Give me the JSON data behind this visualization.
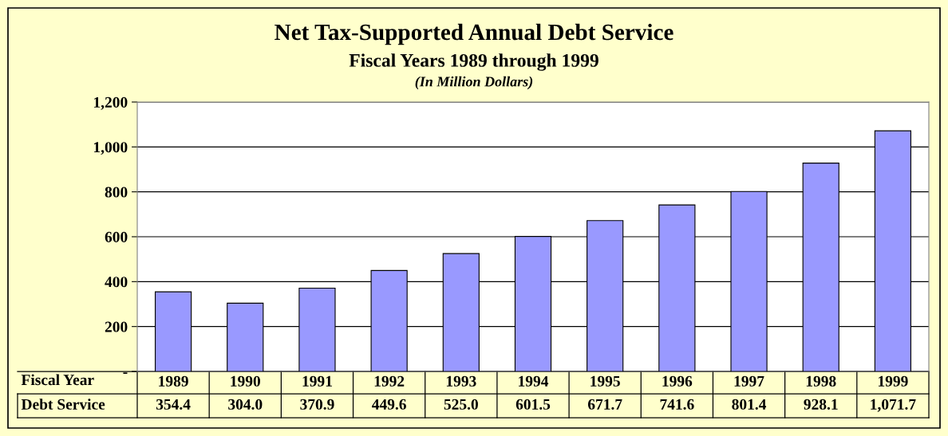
{
  "chart_data": {
    "type": "bar",
    "title": "Net Tax-Supported Annual Debt Service",
    "subtitle": "Fiscal Years 1989 through 1999",
    "xlabel": "Fiscal Year",
    "annotations": [
      "(In Million Dollars)",
      "Debt Service"
    ],
    "categories": [
      "1989",
      "1990",
      "1991",
      "1992",
      "1993",
      "1994",
      "1995",
      "1996",
      "1997",
      "1998",
      "1999"
    ],
    "values": [
      354.4,
      304.0,
      370.9,
      449.6,
      525.0,
      601.5,
      671.7,
      741.6,
      801.4,
      928.1,
      1071.7
    ],
    "value_labels": [
      "354.4",
      "304.0",
      "370.9",
      "449.6",
      "525.0",
      "601.5",
      "671.7",
      "741.6",
      "801.4",
      "928.1",
      "1,071.7"
    ],
    "color": "#9999ff",
    "ylim": [
      0,
      1200
    ],
    "yticks": [
      {
        "value": 0,
        "label": "-"
      },
      200,
      400,
      600,
      800,
      {
        "value": 1000,
        "label": "1,000"
      },
      {
        "value": 1200,
        "label": "1,200"
      }
    ],
    "grid": "y",
    "legend": false
  }
}
